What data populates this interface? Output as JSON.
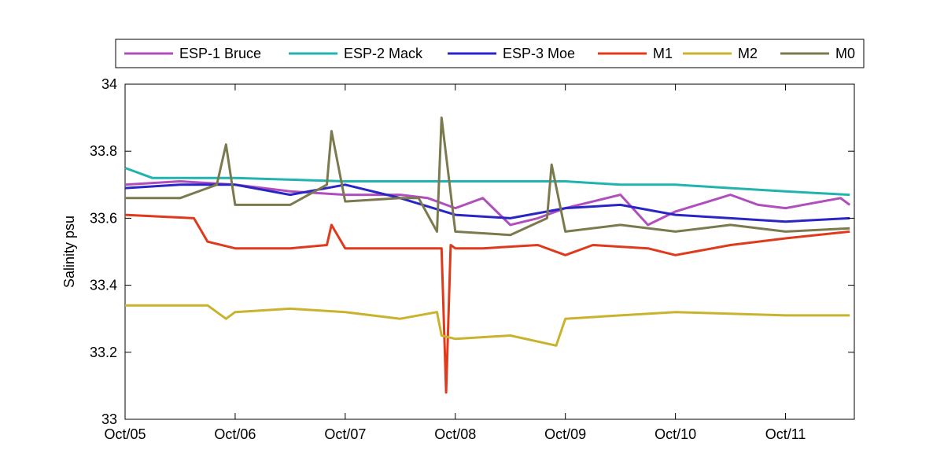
{
  "chart_data": {
    "type": "line",
    "xlabel": "",
    "ylabel": "Salinity psu",
    "xlim": [
      "2012-10-05",
      "2012-10-11T15:00"
    ],
    "ylim": [
      33,
      34
    ],
    "x_ticks": [
      "Oct/05",
      "Oct/06",
      "Oct/07",
      "Oct/08",
      "Oct/09",
      "Oct/10",
      "Oct/11"
    ],
    "y_ticks": [
      "33",
      "33.2",
      "33.4",
      "33.6",
      "33.8",
      "34"
    ],
    "grid": false,
    "legend_position": "top, horizontal, outside plot",
    "series": [
      {
        "name": "ESP-1 Bruce",
        "color": "#b04ebd",
        "x": [
          "2012-10-05T00:00",
          "2012-10-05T12:00",
          "2012-10-06T00:00",
          "2012-10-06T12:00",
          "2012-10-07T00:00",
          "2012-10-07T12:00",
          "2012-10-07T18:00",
          "2012-10-08T00:00",
          "2012-10-08T06:00",
          "2012-10-08T12:00",
          "2012-10-08T18:00",
          "2012-10-09T00:00",
          "2012-10-09T12:00",
          "2012-10-09T18:00",
          "2012-10-10T00:00",
          "2012-10-10T12:00",
          "2012-10-10T18:00",
          "2012-10-11T00:00",
          "2012-10-11T12:00",
          "2012-10-11T14:00"
        ],
        "y": [
          33.7,
          33.71,
          33.7,
          33.68,
          33.67,
          33.67,
          33.66,
          33.63,
          33.66,
          33.58,
          33.6,
          33.63,
          33.67,
          33.58,
          33.62,
          33.67,
          33.64,
          33.63,
          33.66,
          33.64
        ]
      },
      {
        "name": "ESP-2 Mack",
        "color": "#21b3ad",
        "x": [
          "2012-10-05T00:00",
          "2012-10-05T06:00",
          "2012-10-06T00:00",
          "2012-10-07T00:00",
          "2012-10-08T00:00",
          "2012-10-09T00:00",
          "2012-10-09T12:00",
          "2012-10-10T00:00",
          "2012-10-10T12:00",
          "2012-10-11T00:00",
          "2012-10-11T14:00"
        ],
        "y": [
          33.75,
          33.72,
          33.72,
          33.71,
          33.71,
          33.71,
          33.7,
          33.7,
          33.69,
          33.68,
          33.67
        ]
      },
      {
        "name": "ESP-3 Moe",
        "color": "#2a25c5",
        "x": [
          "2012-10-05T00:00",
          "2012-10-05T12:00",
          "2012-10-06T00:00",
          "2012-10-06T12:00",
          "2012-10-07T00:00",
          "2012-10-07T12:00",
          "2012-10-08T00:00",
          "2012-10-08T12:00",
          "2012-10-09T00:00",
          "2012-10-09T12:00",
          "2012-10-10T00:00",
          "2012-10-10T12:00",
          "2012-10-11T00:00",
          "2012-10-11T14:00"
        ],
        "y": [
          33.69,
          33.7,
          33.7,
          33.67,
          33.7,
          33.66,
          33.61,
          33.6,
          33.63,
          33.64,
          33.61,
          33.6,
          33.59,
          33.6
        ]
      },
      {
        "name": "M1",
        "color": "#e03a1c",
        "x": [
          "2012-10-05T00:00",
          "2012-10-05T15:00",
          "2012-10-05T18:00",
          "2012-10-06T00:00",
          "2012-10-06T12:00",
          "2012-10-06T20:00",
          "2012-10-06T21:00",
          "2012-10-07T00:00",
          "2012-10-07T12:00",
          "2012-10-07T21:00",
          "2012-10-07T22:00",
          "2012-10-07T23:00",
          "2012-10-08T00:00",
          "2012-10-08T06:00",
          "2012-10-08T18:00",
          "2012-10-09T00:00",
          "2012-10-09T06:00",
          "2012-10-09T18:00",
          "2012-10-10T00:00",
          "2012-10-10T12:00",
          "2012-10-11T00:00",
          "2012-10-11T14:00"
        ],
        "y": [
          33.61,
          33.6,
          33.53,
          33.51,
          33.51,
          33.52,
          33.58,
          33.51,
          33.51,
          33.51,
          33.08,
          33.52,
          33.51,
          33.51,
          33.52,
          33.49,
          33.52,
          33.51,
          33.49,
          33.52,
          33.54,
          33.56
        ]
      },
      {
        "name": "M2",
        "color": "#c9b32c",
        "x": [
          "2012-10-05T00:00",
          "2012-10-05T18:00",
          "2012-10-05T22:00",
          "2012-10-06T00:00",
          "2012-10-06T12:00",
          "2012-10-07T00:00",
          "2012-10-07T12:00",
          "2012-10-07T20:00",
          "2012-10-07T21:00",
          "2012-10-08T00:00",
          "2012-10-08T12:00",
          "2012-10-08T22:00",
          "2012-10-09T00:00",
          "2012-10-09T12:00",
          "2012-10-10T00:00",
          "2012-10-11T00:00",
          "2012-10-11T14:00"
        ],
        "y": [
          33.34,
          33.34,
          33.3,
          33.32,
          33.33,
          33.32,
          33.3,
          33.32,
          33.25,
          33.24,
          33.25,
          33.22,
          33.3,
          33.31,
          33.32,
          33.31,
          33.31
        ]
      },
      {
        "name": "M0",
        "color": "#7b7a4e",
        "x": [
          "2012-10-05T00:00",
          "2012-10-05T12:00",
          "2012-10-05T20:00",
          "2012-10-05T22:00",
          "2012-10-06T00:00",
          "2012-10-06T12:00",
          "2012-10-06T20:00",
          "2012-10-06T21:00",
          "2012-10-07T00:00",
          "2012-10-07T12:00",
          "2012-10-07T16:00",
          "2012-10-07T20:00",
          "2012-10-07T21:00",
          "2012-10-08T00:00",
          "2012-10-08T12:00",
          "2012-10-08T20:00",
          "2012-10-08T21:00",
          "2012-10-09T00:00",
          "2012-10-09T12:00",
          "2012-10-10T00:00",
          "2012-10-10T12:00",
          "2012-10-11T00:00",
          "2012-10-11T14:00"
        ],
        "y": [
          33.66,
          33.66,
          33.7,
          33.82,
          33.64,
          33.64,
          33.7,
          33.86,
          33.65,
          33.66,
          33.66,
          33.56,
          33.9,
          33.56,
          33.55,
          33.6,
          33.76,
          33.56,
          33.58,
          33.56,
          33.58,
          33.56,
          33.57
        ]
      }
    ]
  }
}
